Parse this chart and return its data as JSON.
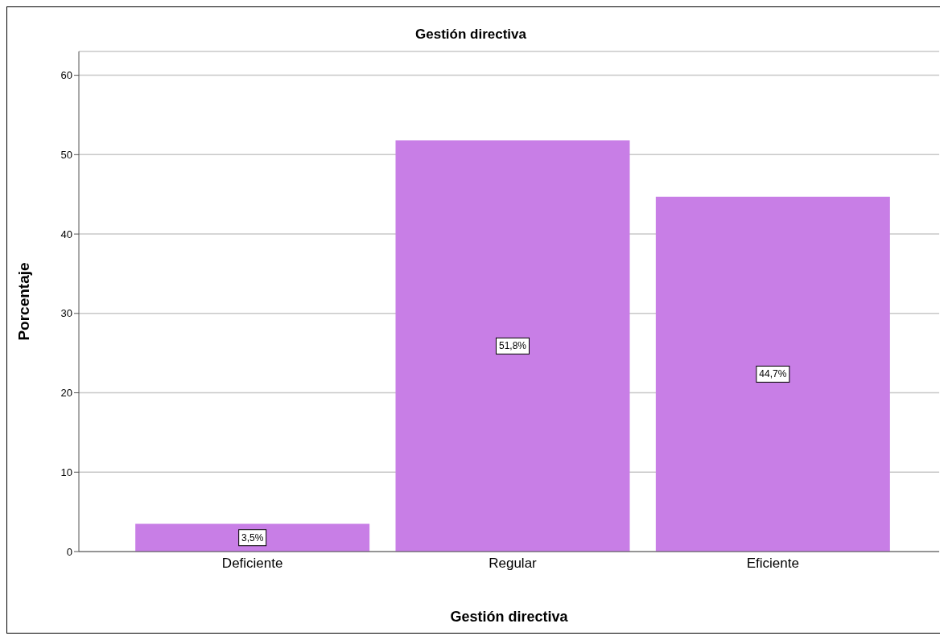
{
  "chart_data": {
    "type": "bar",
    "title": "Gestión directiva",
    "xlabel": "Gestión directiva",
    "ylabel": "Porcentaje",
    "categories": [
      "Deficiente",
      "Regular",
      "Eficiente"
    ],
    "values": [
      3.5,
      51.8,
      44.7
    ],
    "value_labels": [
      "3,5%",
      "51,8%",
      "44,7%"
    ],
    "color": "#c87ee6",
    "ylim": [
      0,
      63
    ],
    "yticks": [
      0,
      10,
      20,
      30,
      40,
      50,
      60
    ],
    "grid": "y"
  }
}
